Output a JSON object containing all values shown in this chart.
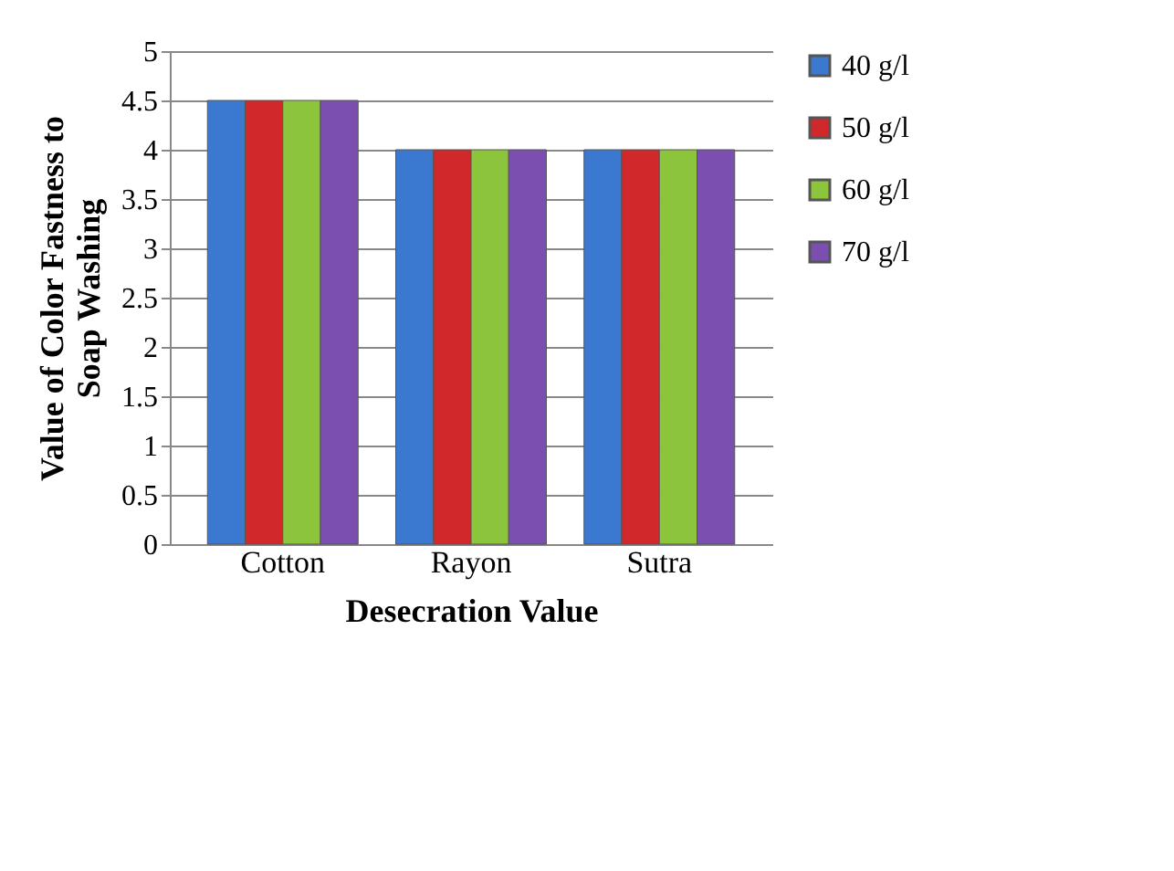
{
  "chart_data": {
    "type": "bar",
    "xlabel": "Desecration Value",
    "ylabel": "Value of Color Fastness to Soap Washing",
    "categories": [
      "Cotton",
      "Rayon",
      "Sutra"
    ],
    "series": [
      {
        "name": "40 g/l",
        "color": "#3b78d0",
        "values": [
          4.5,
          4,
          4
        ]
      },
      {
        "name": "50 g/l",
        "color": "#d0282b",
        "values": [
          4.5,
          4,
          4
        ]
      },
      {
        "name": "60 g/l",
        "color": "#8cc43c",
        "values": [
          4.5,
          4,
          4
        ]
      },
      {
        "name": "70 g/l",
        "color": "#7b4fb0",
        "values": [
          4.5,
          4,
          4
        ]
      }
    ],
    "ylim": [
      0,
      5
    ],
    "yticks": [
      0,
      0.5,
      1,
      1.5,
      2,
      2.5,
      3,
      3.5,
      4,
      4.5,
      5
    ],
    "grid": "y",
    "legend": "right"
  }
}
